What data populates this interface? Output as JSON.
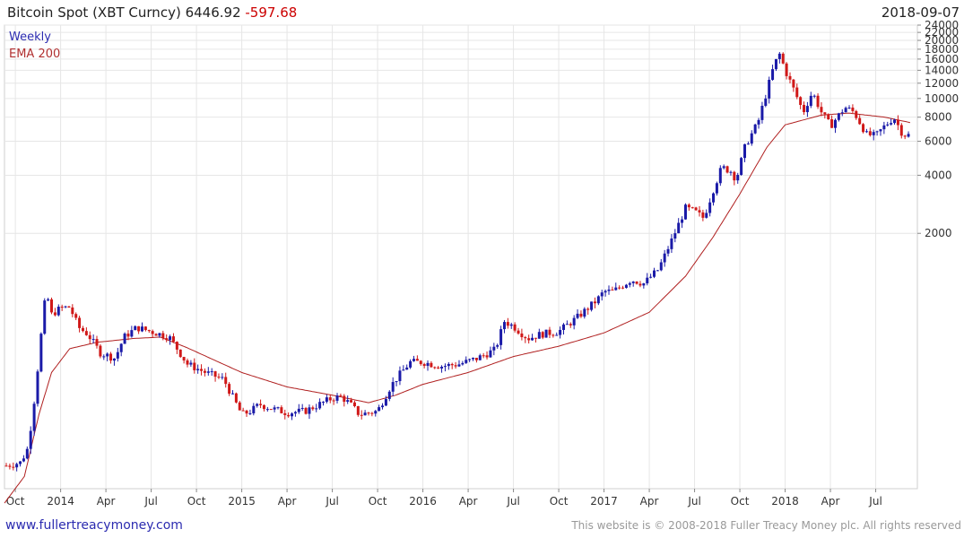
{
  "header": {
    "title": "Bitcoin Spot (XBT Curncy)",
    "last_price": "6446.92",
    "change": "-597.68",
    "date": "2018-09-07"
  },
  "legend": {
    "weekly": "Weekly",
    "ema": "EMA 200"
  },
  "footer": {
    "site": "www.fullertreacymoney.com",
    "copyright": "This website is © 2008-2018 Fuller Treacy Money plc. All rights reserved"
  },
  "colors": {
    "up": "#1a1aa8",
    "down": "#d01818",
    "ema": "#b02020",
    "grid": "#e6e6e6"
  },
  "chart_data": {
    "type": "candlestick",
    "title": "Bitcoin Spot (XBT Curncy)",
    "scale": "log",
    "ylim": [
      95,
      24000
    ],
    "xlim": [
      2013.69,
      2018.73
    ],
    "y_ticks": [
      2000,
      4000,
      6000,
      8000,
      10000,
      12000,
      14000,
      16000,
      18000,
      20000,
      22000,
      24000
    ],
    "x_ticks": [
      {
        "label": "Oct",
        "t": 2013.75
      },
      {
        "label": "2014",
        "t": 2014.0
      },
      {
        "label": "Apr",
        "t": 2014.25
      },
      {
        "label": "Jul",
        "t": 2014.5
      },
      {
        "label": "Oct",
        "t": 2014.75
      },
      {
        "label": "2015",
        "t": 2015.0
      },
      {
        "label": "Apr",
        "t": 2015.25
      },
      {
        "label": "Jul",
        "t": 2015.5
      },
      {
        "label": "Oct",
        "t": 2015.75
      },
      {
        "label": "2016",
        "t": 2016.0
      },
      {
        "label": "Apr",
        "t": 2016.25
      },
      {
        "label": "Jul",
        "t": 2016.5
      },
      {
        "label": "Oct",
        "t": 2016.75
      },
      {
        "label": "2017",
        "t": 2017.0
      },
      {
        "label": "Apr",
        "t": 2017.25
      },
      {
        "label": "Jul",
        "t": 2017.5
      },
      {
        "label": "Oct",
        "t": 2017.75
      },
      {
        "label": "2018",
        "t": 2018.0
      },
      {
        "label": "Apr",
        "t": 2018.25
      },
      {
        "label": "Jul",
        "t": 2018.5
      }
    ],
    "price_anchors": [
      [
        2013.7,
        125
      ],
      [
        2013.78,
        130
      ],
      [
        2013.82,
        155
      ],
      [
        2013.86,
        300
      ],
      [
        2013.9,
        700
      ],
      [
        2013.92,
        1000
      ],
      [
        2013.95,
        760
      ],
      [
        2014.0,
        820
      ],
      [
        2014.05,
        830
      ],
      [
        2014.1,
        650
      ],
      [
        2014.15,
        600
      ],
      [
        2014.22,
        480
      ],
      [
        2014.3,
        450
      ],
      [
        2014.35,
        580
      ],
      [
        2014.42,
        650
      ],
      [
        2014.5,
        620
      ],
      [
        2014.6,
        580
      ],
      [
        2014.7,
        420
      ],
      [
        2014.8,
        380
      ],
      [
        2014.9,
        350
      ],
      [
        2015.0,
        230
      ],
      [
        2015.05,
        240
      ],
      [
        2015.1,
        260
      ],
      [
        2015.15,
        250
      ],
      [
        2015.25,
        235
      ],
      [
        2015.35,
        240
      ],
      [
        2015.5,
        280
      ],
      [
        2015.55,
        285
      ],
      [
        2015.6,
        260
      ],
      [
        2015.65,
        230
      ],
      [
        2015.75,
        240
      ],
      [
        2015.82,
        320
      ],
      [
        2015.86,
        360
      ],
      [
        2015.93,
        430
      ],
      [
        2016.0,
        430
      ],
      [
        2016.1,
        410
      ],
      [
        2016.2,
        420
      ],
      [
        2016.3,
        450
      ],
      [
        2016.4,
        500
      ],
      [
        2016.45,
        700
      ],
      [
        2016.5,
        660
      ],
      [
        2016.58,
        570
      ],
      [
        2016.65,
        600
      ],
      [
        2016.75,
        620
      ],
      [
        2016.85,
        730
      ],
      [
        2016.96,
        900
      ],
      [
        2017.0,
        1000
      ],
      [
        2017.05,
        1000
      ],
      [
        2017.15,
        1150
      ],
      [
        2017.22,
        1100
      ],
      [
        2017.3,
        1300
      ],
      [
        2017.38,
        1900
      ],
      [
        2017.45,
        2700
      ],
      [
        2017.5,
        2600
      ],
      [
        2017.55,
        2400
      ],
      [
        2017.6,
        3300
      ],
      [
        2017.65,
        4400
      ],
      [
        2017.7,
        4200
      ],
      [
        2017.73,
        3800
      ],
      [
        2017.78,
        5700
      ],
      [
        2017.85,
        7500
      ],
      [
        2017.9,
        11000
      ],
      [
        2017.94,
        15000
      ],
      [
        2017.97,
        17000
      ],
      [
        2018.0,
        14000
      ],
      [
        2018.05,
        11000
      ],
      [
        2018.1,
        8500
      ],
      [
        2018.15,
        10800
      ],
      [
        2018.2,
        8500
      ],
      [
        2018.25,
        7200
      ],
      [
        2018.33,
        9000
      ],
      [
        2018.38,
        8500
      ],
      [
        2018.45,
        6500
      ],
      [
        2018.5,
        6400
      ],
      [
        2018.55,
        7200
      ],
      [
        2018.6,
        8000
      ],
      [
        2018.65,
        6500
      ],
      [
        2018.69,
        6446.92
      ]
    ],
    "ema_anchors": [
      [
        2013.69,
        80
      ],
      [
        2013.8,
        110
      ],
      [
        2013.88,
        230
      ],
      [
        2013.95,
        380
      ],
      [
        2014.05,
        505
      ],
      [
        2014.2,
        545
      ],
      [
        2014.4,
        570
      ],
      [
        2014.55,
        580
      ],
      [
        2014.7,
        510
      ],
      [
        2014.85,
        440
      ],
      [
        2015.0,
        380
      ],
      [
        2015.25,
        320
      ],
      [
        2015.5,
        290
      ],
      [
        2015.7,
        265
      ],
      [
        2015.85,
        290
      ],
      [
        2016.0,
        330
      ],
      [
        2016.25,
        380
      ],
      [
        2016.5,
        460
      ],
      [
        2016.75,
        520
      ],
      [
        2017.0,
        610
      ],
      [
        2017.25,
        780
      ],
      [
        2017.45,
        1200
      ],
      [
        2017.6,
        1900
      ],
      [
        2017.75,
        3200
      ],
      [
        2017.9,
        5600
      ],
      [
        2018.0,
        7300
      ],
      [
        2018.2,
        8200
      ],
      [
        2018.35,
        8400
      ],
      [
        2018.55,
        8000
      ],
      [
        2018.69,
        7500
      ]
    ]
  }
}
